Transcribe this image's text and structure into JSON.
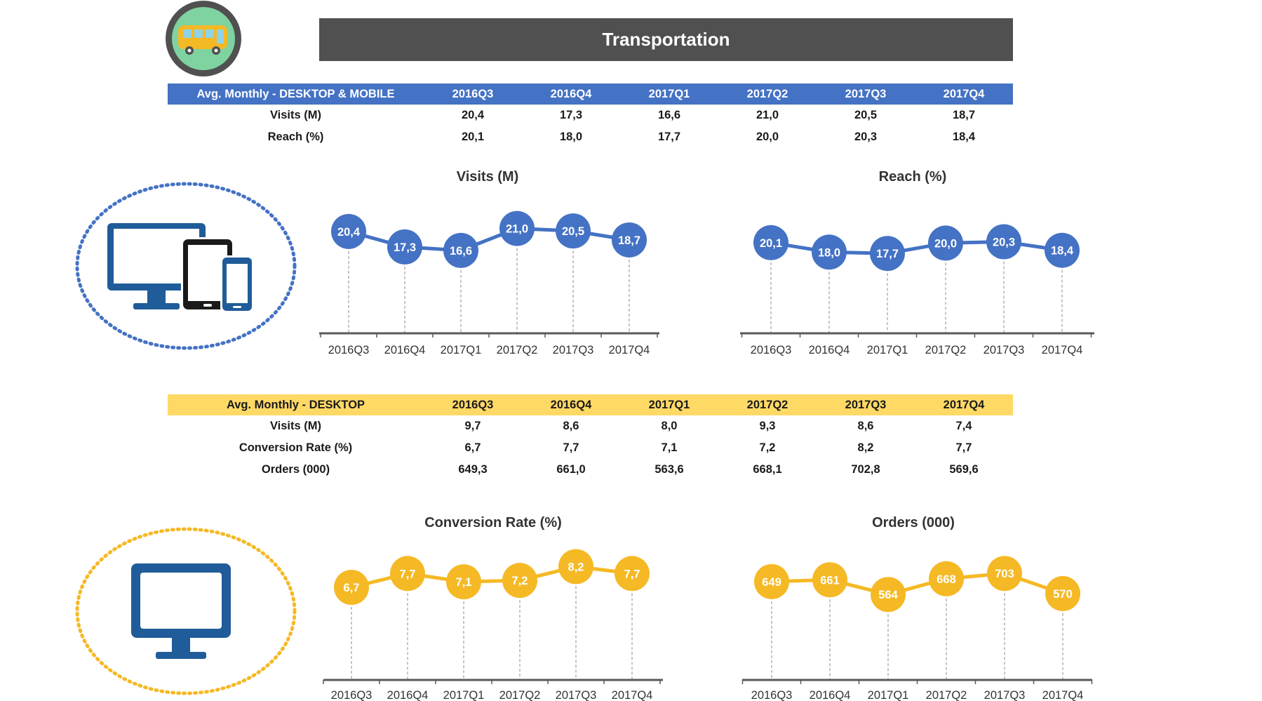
{
  "title": "Transportation",
  "colors": {
    "mobile": "#4472c4",
    "desktop": "#f5b925",
    "header_bg": "#505050",
    "icon_blue": "#1f5c99"
  },
  "icons": {
    "bus": "bus-icon",
    "devices": "devices-icon",
    "desktop": "desktop-monitor-icon"
  },
  "table_mobile": {
    "header": [
      "Avg. Monthly - DESKTOP & MOBILE",
      "2016Q3",
      "2016Q4",
      "2017Q1",
      "2017Q2",
      "2017Q3",
      "2017Q4"
    ],
    "rows": [
      {
        "label": "Visits (M)",
        "values": [
          "20,4",
          "17,3",
          "16,6",
          "21,0",
          "20,5",
          "18,7"
        ]
      },
      {
        "label": "Reach (%)",
        "values": [
          "20,1",
          "18,0",
          "17,7",
          "20,0",
          "20,3",
          "18,4"
        ]
      }
    ]
  },
  "table_desktop": {
    "header": [
      "Avg. Monthly - DESKTOP",
      "2016Q3",
      "2016Q4",
      "2017Q1",
      "2017Q2",
      "2017Q3",
      "2017Q4"
    ],
    "rows": [
      {
        "label": "Visits (M)",
        "values": [
          "9,7",
          "8,6",
          "8,0",
          "9,3",
          "8,6",
          "7,4"
        ]
      },
      {
        "label": "Conversion Rate (%)",
        "values": [
          "6,7",
          "7,7",
          "7,1",
          "7,2",
          "8,2",
          "7,7"
        ]
      },
      {
        "label": "Orders (000)",
        "values": [
          "649,3",
          "661,0",
          "563,6",
          "668,1",
          "702,8",
          "569,6"
        ]
      }
    ]
  },
  "chart_data": [
    {
      "type": "line",
      "title": "Visits (M)",
      "categories": [
        "2016Q3",
        "2016Q4",
        "2017Q1",
        "2017Q2",
        "2017Q3",
        "2017Q4"
      ],
      "values": [
        20.4,
        17.3,
        16.6,
        21.0,
        20.5,
        18.7
      ],
      "labels": [
        "20,4",
        "17,3",
        "16,6",
        "21,0",
        "20,5",
        "18,7"
      ],
      "ylim": [
        0,
        26
      ],
      "color": "#4472c4"
    },
    {
      "type": "line",
      "title": "Reach (%)",
      "categories": [
        "2016Q3",
        "2016Q4",
        "2017Q1",
        "2017Q2",
        "2017Q3",
        "2017Q4"
      ],
      "values": [
        20.1,
        18.0,
        17.7,
        20.0,
        20.3,
        18.4
      ],
      "labels": [
        "20,1",
        "18,0",
        "17,7",
        "20,0",
        "20,3",
        "18,4"
      ],
      "ylim": [
        0,
        28
      ],
      "color": "#4472c4"
    },
    {
      "type": "line",
      "title": "Conversion Rate (%)",
      "categories": [
        "2016Q3",
        "2016Q4",
        "2017Q1",
        "2017Q2",
        "2017Q3",
        "2017Q4"
      ],
      "values": [
        6.7,
        7.7,
        7.1,
        7.2,
        8.2,
        7.7
      ],
      "labels": [
        "6,7",
        "7,7",
        "7,1",
        "7,2",
        "8,2",
        "7,7"
      ],
      "ylim": [
        0,
        10
      ],
      "color": "#f5b925"
    },
    {
      "type": "line",
      "title": "Orders (000)",
      "categories": [
        "2016Q3",
        "2016Q4",
        "2017Q1",
        "2017Q2",
        "2017Q3",
        "2017Q4"
      ],
      "values": [
        649,
        661,
        564,
        668,
        703,
        570
      ],
      "labels": [
        "649",
        "661",
        "564",
        "668",
        "703",
        "570"
      ],
      "ylim": [
        0,
        880
      ],
      "color": "#f5b925"
    }
  ]
}
